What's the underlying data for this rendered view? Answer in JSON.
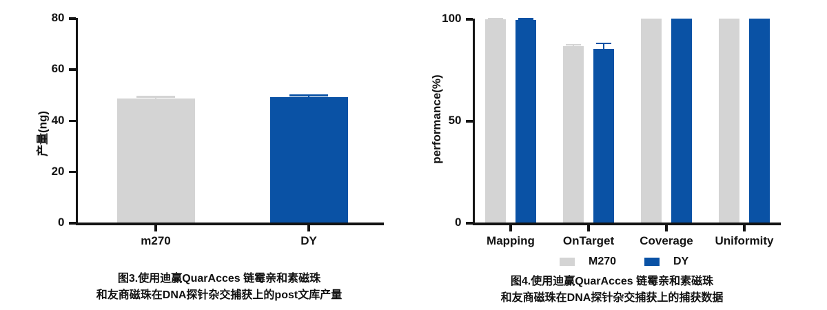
{
  "page": {
    "background": "#ffffff"
  },
  "colors": {
    "m270_gray": "#d4d4d4",
    "dy_blue": "#0a52a5",
    "axis": "#141414"
  },
  "chart_data": [
    {
      "id": "fig3",
      "type": "bar",
      "title": "",
      "ylabel": "产量(ng)",
      "xlabel": "",
      "ylim": [
        0,
        80
      ],
      "yticks": [
        0,
        20,
        40,
        60,
        80
      ],
      "grid": false,
      "categories": [
        "m270",
        "DY"
      ],
      "values": [
        48.4,
        48.9
      ],
      "errors": [
        0.8,
        0.9
      ],
      "bar_colors": [
        "#d4d4d4",
        "#0a52a5"
      ],
      "caption": [
        "图3.使用迪赢QuarAcces 链霉亲和素磁珠",
        "和友商磁珠在DNA探针杂交捕获上的post文库产量"
      ]
    },
    {
      "id": "fig4",
      "type": "bar",
      "title": "",
      "ylabel": "performance(%)",
      "xlabel": "",
      "ylim": [
        0,
        100
      ],
      "yticks": [
        0,
        50,
        100
      ],
      "grid": false,
      "legend_position": "bottom",
      "categories": [
        "Mapping",
        "OnTarget",
        "Coverage",
        "Uniformity"
      ],
      "series": [
        {
          "name": "M270",
          "color": "#d4d4d4",
          "values": [
            99.8,
            86.4,
            100,
            100
          ],
          "errors": [
            0.2,
            0.8,
            0,
            0
          ]
        },
        {
          "name": "DY",
          "color": "#0a52a5",
          "values": [
            99.3,
            85.1,
            100,
            100
          ],
          "errors": [
            0.5,
            2.8,
            0,
            0
          ]
        }
      ],
      "caption": [
        "图4.使用迪赢QuarAcces 链霉亲和素磁珠",
        "和友商磁珠在DNA探针杂交捕获上的捕获数据"
      ]
    }
  ]
}
